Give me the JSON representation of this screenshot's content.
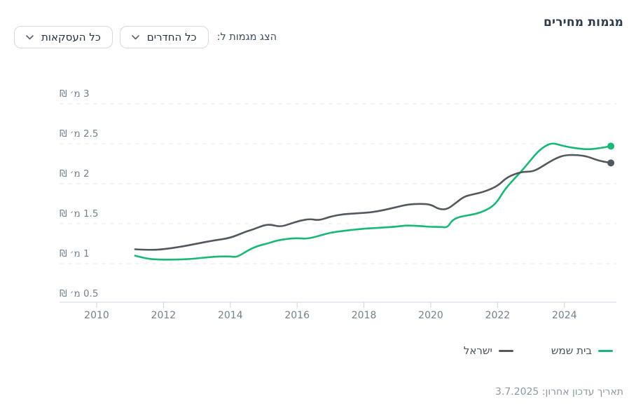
{
  "header": {
    "title": "מגמות מחירים"
  },
  "controls": {
    "label": "הצג מגמות ל:",
    "rooms_dropdown": {
      "value": "כל החדרים",
      "icon": "chevron-down-icon"
    },
    "transactions_dropdown": {
      "value": "כל העסקאות",
      "icon": "chevron-down-icon"
    }
  },
  "chart_data": {
    "type": "line",
    "title": "מגמות מחירים",
    "units": "millions ILS (₪)",
    "x_range": [
      2010,
      2025.5
    ],
    "y_range": [
      0.5,
      3
    ],
    "grid": "dashed-horizontal",
    "legend_position": "bottom-right",
    "x_axis": {
      "tick_years": [
        2010,
        2012,
        2014,
        2016,
        2018,
        2020,
        2022,
        2024
      ]
    },
    "y_axis": {
      "ticks": [
        {
          "value": 3,
          "label": "3 מ׳ ₪"
        },
        {
          "value": 2.5,
          "label": "2.5 מ׳ ₪"
        },
        {
          "value": 2,
          "label": "2 מ׳ ₪"
        },
        {
          "value": 1.5,
          "label": "1.5 מ׳ ₪"
        },
        {
          "value": 1,
          "label": "1 מ׳ ₪"
        },
        {
          "value": 0.5,
          "label": "0.5 מ׳ ₪"
        }
      ]
    },
    "series": [
      {
        "name": "בית שמש",
        "color": "#19b877",
        "points": [
          [
            2011.15,
            1.1
          ],
          [
            2011.5,
            1.06
          ],
          [
            2011.9,
            1.05
          ],
          [
            2012.4,
            1.05
          ],
          [
            2012.9,
            1.06
          ],
          [
            2013.3,
            1.08
          ],
          [
            2013.7,
            1.09
          ],
          [
            2014.0,
            1.09
          ],
          [
            2014.2,
            1.08
          ],
          [
            2014.5,
            1.16
          ],
          [
            2014.8,
            1.22
          ],
          [
            2015.1,
            1.25
          ],
          [
            2015.4,
            1.29
          ],
          [
            2015.7,
            1.31
          ],
          [
            2016.0,
            1.32
          ],
          [
            2016.3,
            1.31
          ],
          [
            2016.6,
            1.34
          ],
          [
            2017.0,
            1.39
          ],
          [
            2017.4,
            1.41
          ],
          [
            2017.8,
            1.43
          ],
          [
            2018.1,
            1.44
          ],
          [
            2018.5,
            1.45
          ],
          [
            2018.9,
            1.46
          ],
          [
            2019.3,
            1.48
          ],
          [
            2019.7,
            1.47
          ],
          [
            2020.0,
            1.46
          ],
          [
            2020.3,
            1.46
          ],
          [
            2020.5,
            1.45
          ],
          [
            2020.65,
            1.55
          ],
          [
            2020.9,
            1.59
          ],
          [
            2021.2,
            1.61
          ],
          [
            2021.5,
            1.64
          ],
          [
            2021.8,
            1.7
          ],
          [
            2022.0,
            1.78
          ],
          [
            2022.2,
            1.92
          ],
          [
            2022.45,
            2.04
          ],
          [
            2022.7,
            2.15
          ],
          [
            2023.0,
            2.3
          ],
          [
            2023.2,
            2.4
          ],
          [
            2023.45,
            2.48
          ],
          [
            2023.65,
            2.51
          ],
          [
            2023.9,
            2.48
          ],
          [
            2024.1,
            2.46
          ],
          [
            2024.4,
            2.44
          ],
          [
            2024.7,
            2.43
          ],
          [
            2025.0,
            2.44
          ],
          [
            2025.39,
            2.47
          ]
        ]
      },
      {
        "name": "ישראל",
        "color": "#53585e",
        "points": [
          [
            2011.15,
            1.18
          ],
          [
            2011.6,
            1.17
          ],
          [
            2012.0,
            1.18
          ],
          [
            2012.5,
            1.21
          ],
          [
            2013.0,
            1.25
          ],
          [
            2013.5,
            1.29
          ],
          [
            2014.0,
            1.32
          ],
          [
            2014.45,
            1.4
          ],
          [
            2014.7,
            1.43
          ],
          [
            2015.0,
            1.48
          ],
          [
            2015.2,
            1.49
          ],
          [
            2015.5,
            1.46
          ],
          [
            2015.8,
            1.5
          ],
          [
            2016.1,
            1.54
          ],
          [
            2016.4,
            1.56
          ],
          [
            2016.65,
            1.54
          ],
          [
            2017.0,
            1.59
          ],
          [
            2017.4,
            1.62
          ],
          [
            2017.8,
            1.63
          ],
          [
            2018.2,
            1.64
          ],
          [
            2018.6,
            1.67
          ],
          [
            2019.0,
            1.71
          ],
          [
            2019.3,
            1.74
          ],
          [
            2019.7,
            1.75
          ],
          [
            2020.0,
            1.74
          ],
          [
            2020.25,
            1.68
          ],
          [
            2020.5,
            1.68
          ],
          [
            2020.75,
            1.76
          ],
          [
            2021.0,
            1.84
          ],
          [
            2021.3,
            1.87
          ],
          [
            2021.6,
            1.9
          ],
          [
            2022.0,
            1.97
          ],
          [
            2022.25,
            2.07
          ],
          [
            2022.5,
            2.12
          ],
          [
            2022.75,
            2.15
          ],
          [
            2023.0,
            2.15
          ],
          [
            2023.2,
            2.18
          ],
          [
            2023.5,
            2.26
          ],
          [
            2023.8,
            2.33
          ],
          [
            2024.05,
            2.36
          ],
          [
            2024.4,
            2.36
          ],
          [
            2024.7,
            2.34
          ],
          [
            2025.0,
            2.29
          ],
          [
            2025.39,
            2.26
          ]
        ]
      }
    ]
  },
  "footer": {
    "last_update": "תאריך עדכון אחרון: 3.7.2025"
  }
}
